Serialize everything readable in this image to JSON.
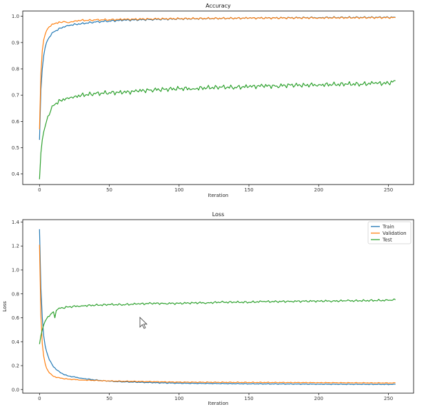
{
  "chart_data": [
    {
      "type": "line",
      "title": "Accuracy",
      "xlabel": "Iteration",
      "ylabel": "",
      "xlim": [
        -12,
        268
      ],
      "ylim": [
        0.36,
        1.02
      ],
      "xticks": [
        "0",
        "50",
        "100",
        "150",
        "200",
        "250"
      ],
      "yticks": [
        "0.4",
        "0.5",
        "0.6",
        "0.7",
        "0.8",
        "0.9",
        "1.0"
      ],
      "grid": false,
      "legend": null,
      "series": [
        {
          "name": "Train",
          "color": "#1f77b4",
          "x": [
            0,
            1,
            2,
            3,
            4,
            5,
            7,
            10,
            15,
            20,
            30,
            40,
            50,
            60,
            80,
            100,
            150,
            200,
            255
          ],
          "y": [
            0.53,
            0.72,
            0.8,
            0.85,
            0.88,
            0.9,
            0.92,
            0.94,
            0.955,
            0.965,
            0.972,
            0.978,
            0.982,
            0.985,
            0.988,
            0.99,
            0.993,
            0.995,
            0.996
          ]
        },
        {
          "name": "Validation",
          "color": "#ff7f0e",
          "x": [
            0,
            1,
            2,
            3,
            4,
            5,
            7,
            10,
            12,
            15,
            18,
            20,
            25,
            30,
            35,
            40,
            50,
            60,
            80,
            100,
            150,
            200,
            255
          ],
          "y": [
            0.57,
            0.78,
            0.87,
            0.91,
            0.93,
            0.945,
            0.96,
            0.97,
            0.975,
            0.977,
            0.98,
            0.976,
            0.982,
            0.985,
            0.984,
            0.986,
            0.987,
            0.988,
            0.99,
            0.991,
            0.993,
            0.994,
            0.995
          ]
        },
        {
          "name": "Test",
          "color": "#2ca02c",
          "x": [
            0,
            1,
            2,
            3,
            4,
            5,
            6,
            8,
            10,
            12,
            15,
            20,
            25,
            30,
            40,
            50,
            60,
            70,
            80,
            90,
            100,
            110,
            120,
            130,
            140,
            150,
            160,
            170,
            180,
            190,
            200,
            210,
            220,
            230,
            240,
            250,
            255
          ],
          "y": [
            0.38,
            0.48,
            0.53,
            0.56,
            0.58,
            0.6,
            0.62,
            0.64,
            0.66,
            0.67,
            0.68,
            0.69,
            0.695,
            0.7,
            0.705,
            0.71,
            0.71,
            0.715,
            0.72,
            0.722,
            0.725,
            0.725,
            0.728,
            0.73,
            0.73,
            0.732,
            0.735,
            0.735,
            0.738,
            0.738,
            0.74,
            0.74,
            0.742,
            0.742,
            0.745,
            0.745,
            0.755
          ]
        }
      ]
    },
    {
      "type": "line",
      "title": "Loss",
      "xlabel": "Iteration",
      "ylabel": "Loss",
      "xlim": [
        -12,
        268
      ],
      "ylim": [
        -0.03,
        1.42
      ],
      "xticks": [
        "0",
        "50",
        "100",
        "150",
        "200",
        "250"
      ],
      "yticks": [
        "0.0",
        "0.2",
        "0.4",
        "0.6",
        "0.8",
        "1.0",
        "1.2",
        "1.4"
      ],
      "grid": false,
      "legend": "top-right",
      "series": [
        {
          "name": "Train",
          "color": "#1f77b4",
          "x": [
            0,
            1,
            2,
            3,
            4,
            5,
            7,
            10,
            15,
            20,
            30,
            40,
            50,
            60,
            80,
            100,
            150,
            200,
            255
          ],
          "y": [
            1.34,
            0.85,
            0.6,
            0.45,
            0.37,
            0.32,
            0.25,
            0.19,
            0.14,
            0.115,
            0.095,
            0.08,
            0.07,
            0.065,
            0.058,
            0.053,
            0.048,
            0.045,
            0.043
          ]
        },
        {
          "name": "Validation",
          "color": "#ff7f0e",
          "x": [
            0,
            1,
            2,
            3,
            4,
            5,
            7,
            10,
            15,
            20,
            30,
            40,
            50,
            60,
            80,
            100,
            150,
            200,
            255
          ],
          "y": [
            1.21,
            0.62,
            0.38,
            0.28,
            0.22,
            0.18,
            0.14,
            0.11,
            0.095,
            0.088,
            0.08,
            0.076,
            0.072,
            0.07,
            0.066,
            0.062,
            0.06,
            0.058,
            0.055
          ]
        },
        {
          "name": "Test",
          "color": "#2ca02c",
          "x": [
            0,
            1,
            2,
            3,
            4,
            5,
            6,
            8,
            10,
            11,
            12,
            13,
            15,
            20,
            30,
            40,
            50,
            60,
            70,
            80,
            90,
            100,
            110,
            120,
            130,
            140,
            150,
            160,
            170,
            180,
            190,
            200,
            210,
            220,
            230,
            240,
            250,
            255
          ],
          "y": [
            0.38,
            0.45,
            0.5,
            0.54,
            0.57,
            0.59,
            0.61,
            0.63,
            0.65,
            0.6,
            0.66,
            0.67,
            0.68,
            0.69,
            0.7,
            0.705,
            0.71,
            0.71,
            0.715,
            0.72,
            0.72,
            0.72,
            0.725,
            0.725,
            0.73,
            0.73,
            0.73,
            0.735,
            0.735,
            0.738,
            0.738,
            0.74,
            0.74,
            0.742,
            0.742,
            0.745,
            0.745,
            0.75
          ]
        }
      ]
    }
  ]
}
